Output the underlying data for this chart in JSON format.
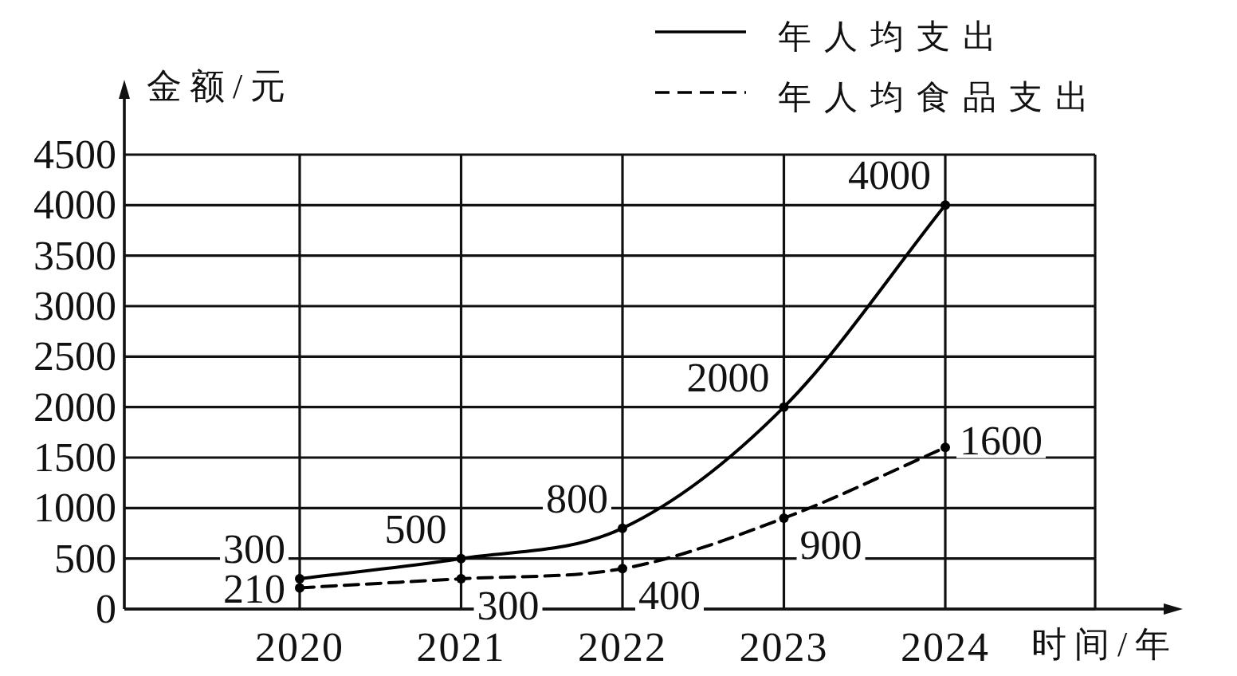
{
  "chart_data": {
    "type": "line",
    "xlabel": "时间/年",
    "ylabel": "金额/元",
    "categories": [
      "2020",
      "2021",
      "2022",
      "2023",
      "2024"
    ],
    "series": [
      {
        "name": "年人均支出",
        "color": "#000000",
        "line_style": "solid",
        "values": [
          300,
          500,
          800,
          2000,
          4000
        ]
      },
      {
        "name": "年人均食品支出",
        "color": "#000000",
        "line_style": "dashed",
        "values": [
          210,
          300,
          400,
          900,
          1600
        ]
      }
    ],
    "ylim": [
      0,
      4500
    ],
    "yticks": [
      0,
      500,
      1000,
      1500,
      2000,
      2500,
      3000,
      3500,
      4000,
      4500
    ],
    "grid": true,
    "legend": "top right",
    "marker": "circle",
    "data_labels": true
  }
}
